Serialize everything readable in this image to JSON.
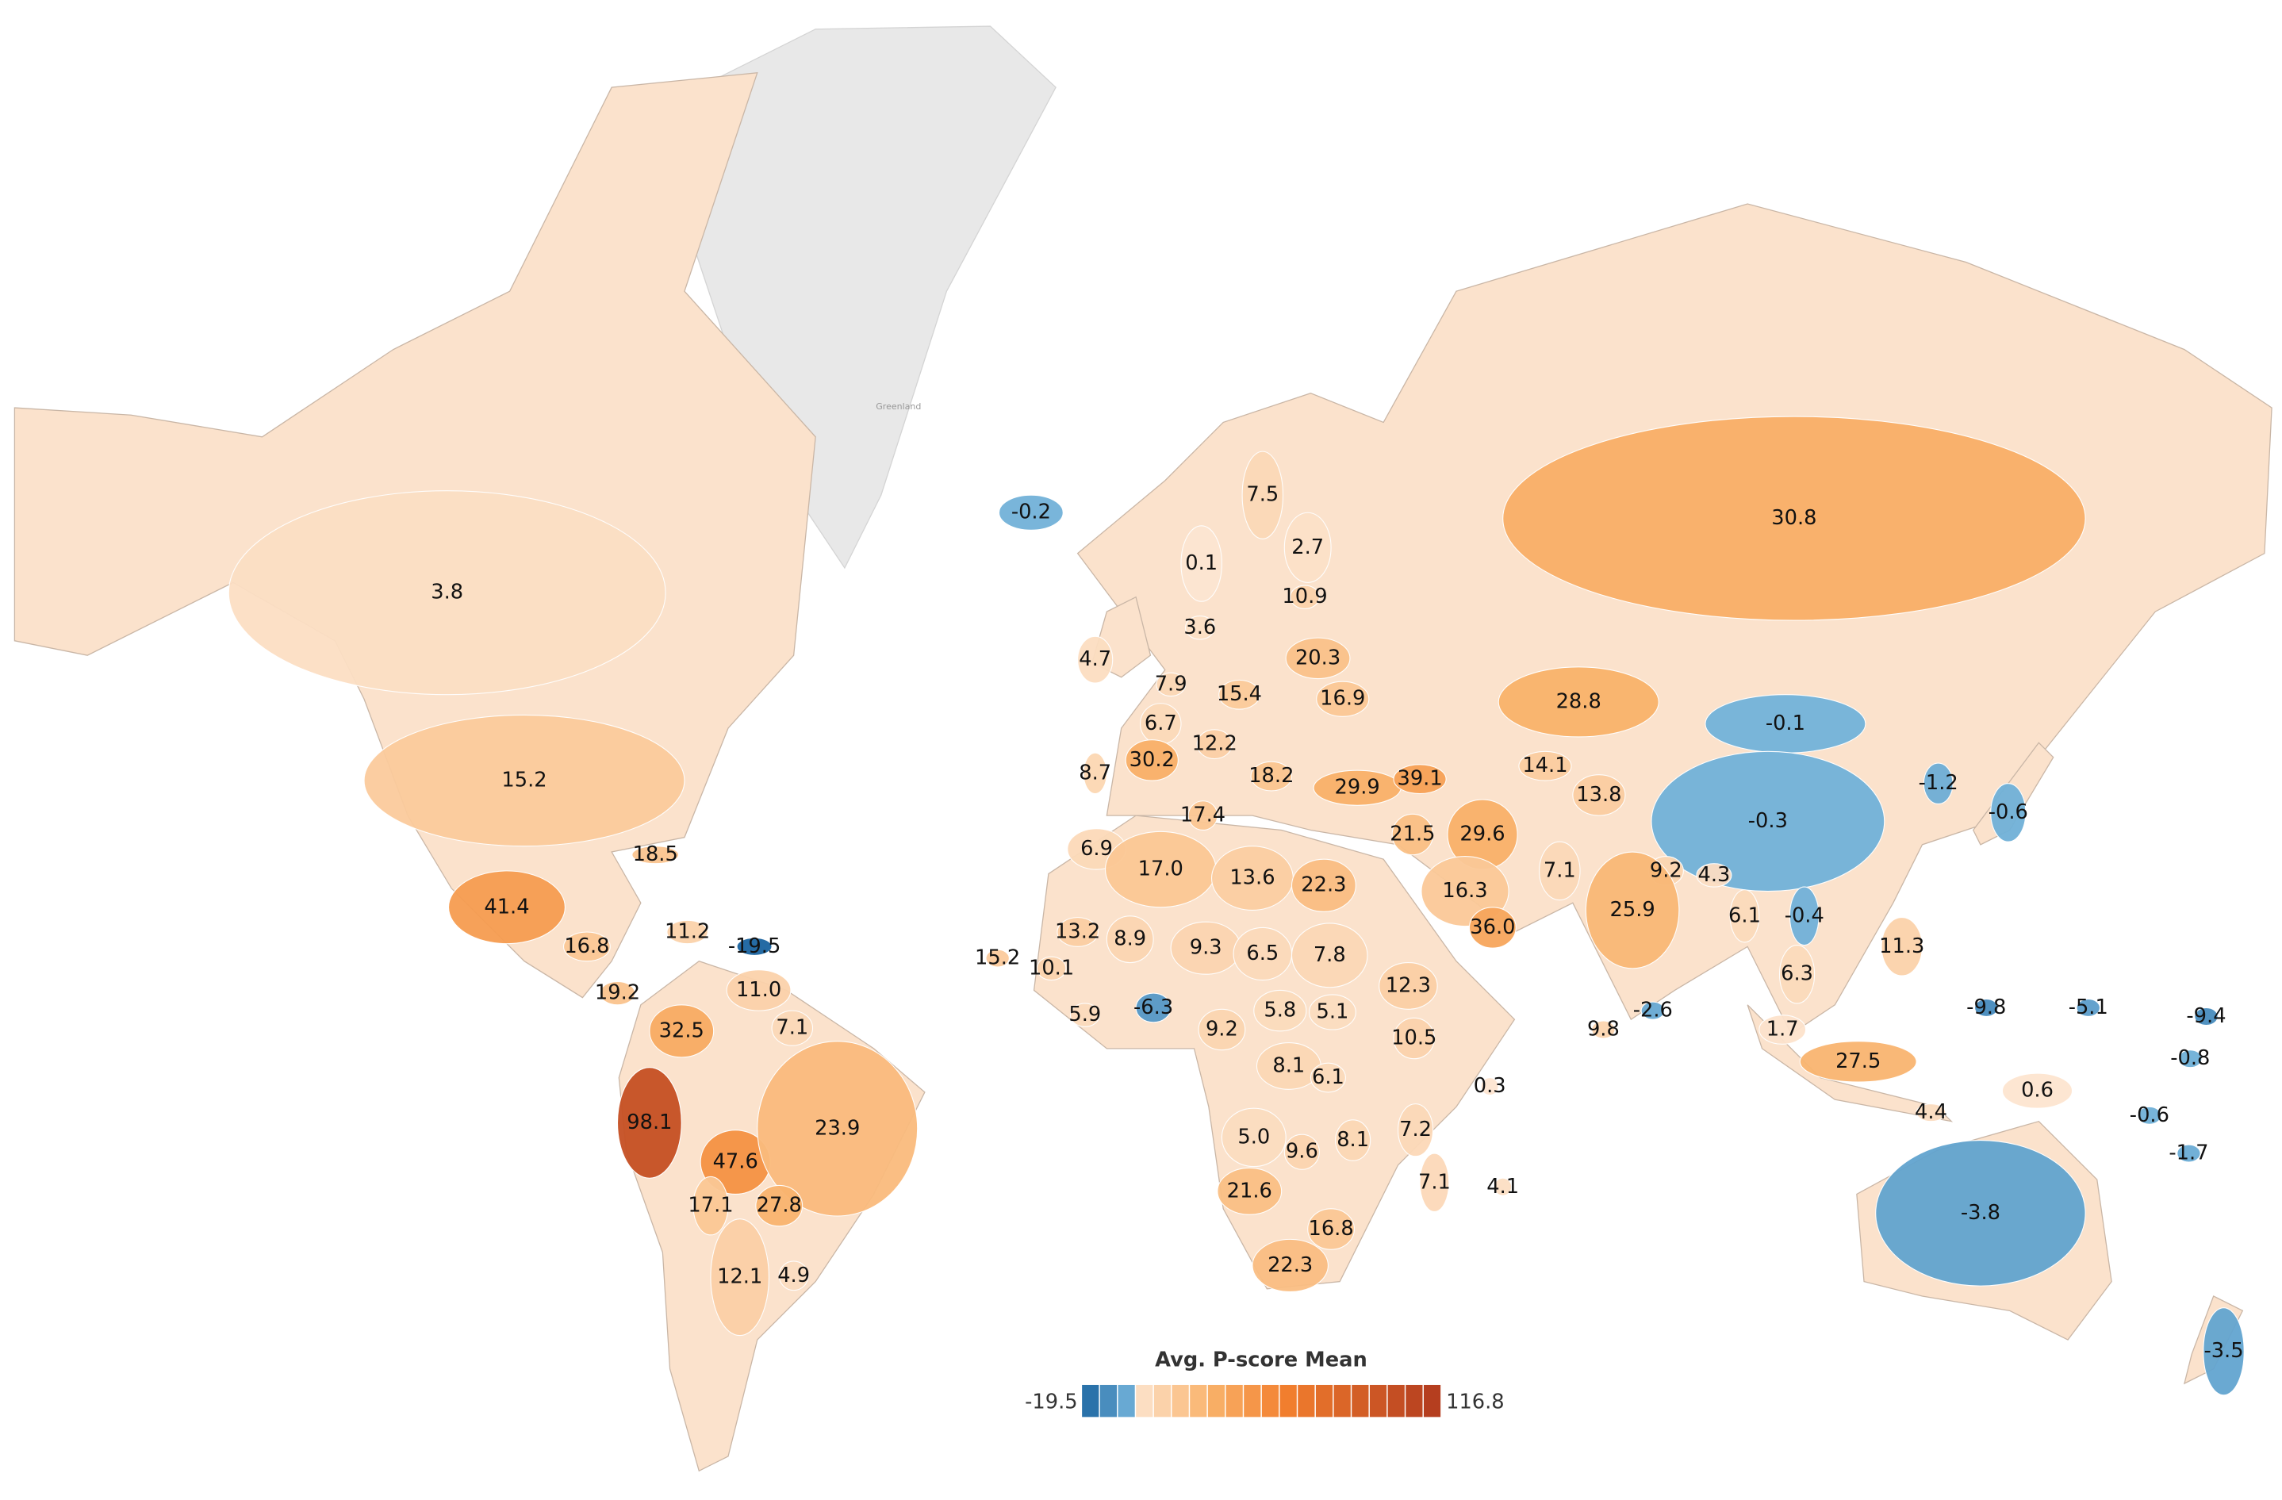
{
  "map": {
    "legend": {
      "title": "Avg. P-score Mean",
      "min": -19.5,
      "max": 116.8
    },
    "greenland_label": "Greenland",
    "values": [
      3.8,
      15.2,
      41.4,
      18.5,
      11.2,
      -19.5,
      16.8,
      19.2,
      11.0,
      32.5,
      7.1,
      98.1,
      47.6,
      23.9,
      17.1,
      27.8,
      12.1,
      4.9,
      -0.2,
      4.7,
      7.5,
      2.7,
      0.1,
      10.9,
      3.6,
      20.3,
      7.9,
      15.4,
      16.9,
      6.7,
      30.2,
      12.2,
      18.2,
      8.7,
      29.9,
      39.1,
      17.4,
      21.5,
      29.6,
      6.9,
      17.0,
      13.6,
      22.3,
      16.3,
      36.0,
      13.2,
      8.9,
      15.2,
      10.1,
      9.3,
      6.5,
      7.8,
      12.3,
      5.9,
      -6.3,
      5.8,
      5.1,
      9.2,
      10.5,
      8.1,
      6.1,
      0.3,
      5.0,
      9.6,
      8.1,
      7.2,
      7.1,
      4.1,
      21.6,
      16.8,
      22.3,
      30.8,
      28.8,
      14.1,
      13.8,
      7.1,
      -0.1,
      -0.3,
      -1.2,
      -0.6,
      9.2,
      4.3,
      25.9,
      6.1,
      -0.4,
      11.3,
      6.3,
      9.8,
      -2.6,
      1.7,
      27.5,
      -9.8,
      -5.1,
      -9.4,
      -0.8,
      0.6,
      4.4,
      -0.6,
      -1.7,
      -3.8,
      -3.5
    ],
    "value_labels": [
      "3.8",
      "15.2",
      "41.4",
      "18.5",
      "11.2",
      "-19.5",
      "16.8",
      "19.2",
      "11.0",
      "32.5",
      "7.1",
      "98.1",
      "47.6",
      "23.9",
      "17.1",
      "27.8",
      "12.1",
      "4.9",
      "-0.2",
      "4.7",
      "7.5",
      "2.7",
      "0.1",
      "10.9",
      "3.6",
      "20.3",
      "7.9",
      "15.4",
      "16.9",
      "6.7",
      "30.2",
      "12.2",
      "18.2",
      "8.7",
      "29.9",
      "39.1",
      "17.4",
      "21.5",
      "29.6",
      "6.9",
      "17.0",
      "13.6",
      "22.3",
      "16.3",
      "36.0",
      "13.2",
      "8.9",
      "15.2",
      "10.1",
      "9.3",
      "6.5",
      "7.8",
      "12.3",
      "5.9",
      "-6.3",
      "5.8",
      "5.1",
      "9.2",
      "10.5",
      "8.1",
      "6.1",
      "0.3",
      "5.0",
      "9.6",
      "8.1",
      "7.2",
      "7.1",
      "4.1",
      "21.6",
      "16.8",
      "22.3",
      "30.8",
      "28.8",
      "14.1",
      "13.8",
      "7.1",
      "-0.1",
      "-0.3",
      "-1.2",
      "-0.6",
      "9.2",
      "4.3",
      "25.9",
      "6.1",
      "-0.4",
      "11.3",
      "6.3",
      "9.8",
      "-2.6",
      "1.7",
      "27.5",
      "-9.8",
      "-5.1",
      "-9.4",
      "-0.8",
      "0.6",
      "4.4",
      "-0.6",
      "-1.7",
      "-3.8",
      "-3.5"
    ]
  }
}
